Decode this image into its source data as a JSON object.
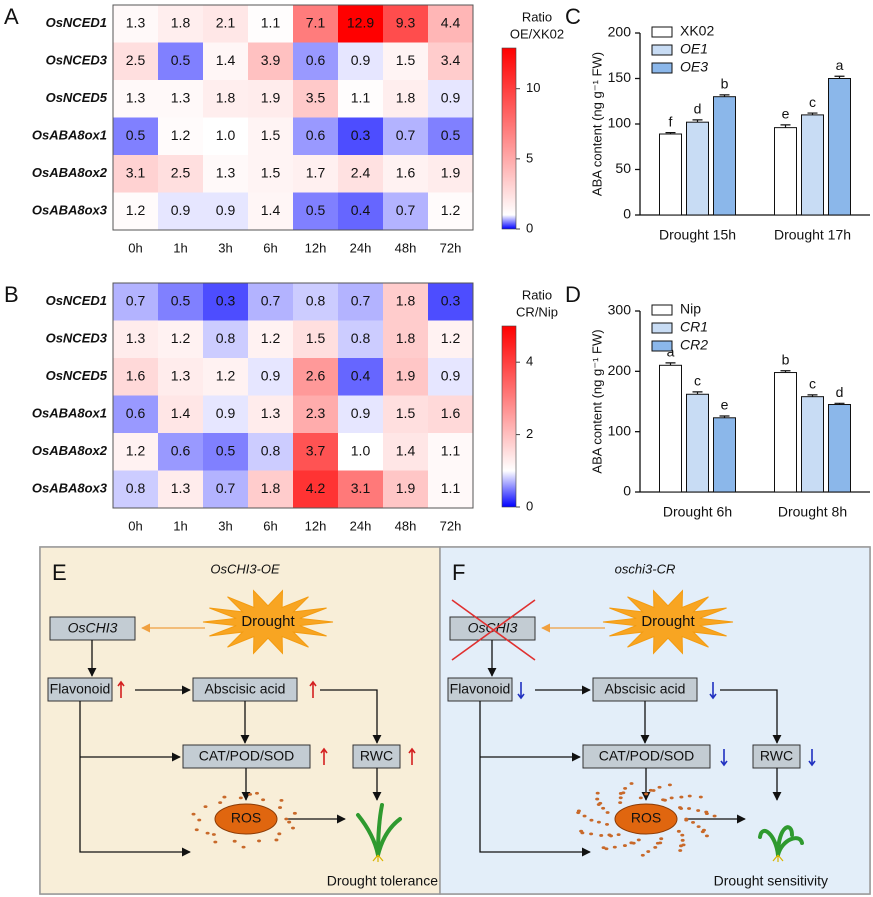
{
  "chart_data": [
    {
      "type": "heatmap",
      "panel": "A",
      "rows": [
        "OsNCED1",
        "OsNCED3",
        "OsNCED5",
        "OsABA8ox1",
        "OsABA8ox2",
        "OsABA8ox3"
      ],
      "categories": [
        "0h",
        "1h",
        "3h",
        "6h",
        "12h",
        "24h",
        "48h",
        "72h"
      ],
      "values": [
        [
          1.3,
          1.8,
          2.1,
          1.1,
          7.1,
          12.9,
          9.3,
          4.4
        ],
        [
          2.5,
          0.5,
          1.4,
          3.9,
          0.6,
          0.9,
          1.5,
          3.4
        ],
        [
          1.3,
          1.3,
          1.8,
          1.9,
          3.5,
          1.1,
          1.8,
          0.9
        ],
        [
          0.5,
          1.2,
          1.0,
          1.5,
          0.6,
          0.3,
          0.7,
          0.5
        ],
        [
          3.1,
          2.5,
          1.3,
          1.5,
          1.7,
          2.4,
          1.6,
          1.9
        ],
        [
          1.2,
          0.9,
          0.9,
          1.4,
          0.5,
          0.4,
          0.7,
          1.2
        ]
      ],
      "value_labels": [
        [
          "1.3",
          "1.8",
          "2.1",
          "1.1",
          "7.1",
          "12.9",
          "9.3",
          "4.4"
        ],
        [
          "2.5",
          "0.5",
          "1.4",
          "3.9",
          "0.6",
          "0.9",
          "1.5",
          "3.4"
        ],
        [
          "1.3",
          "1.3",
          "1.8",
          "1.9",
          "3.5",
          "1.1",
          "1.8",
          "0.9"
        ],
        [
          "0.5",
          "1.2",
          "1.0",
          "1.5",
          "0.6",
          "0.3",
          "0.7",
          "0.5"
        ],
        [
          "3.1",
          "2.5",
          "1.3",
          "1.5",
          "1.7",
          "2.4",
          "1.6",
          "1.9"
        ],
        [
          "1.2",
          "0.9",
          "0.9",
          "1.4",
          "0.5",
          "0.4",
          "0.7",
          "1.2"
        ]
      ],
      "colorbar_title": [
        "Ratio",
        "OE/XK02"
      ],
      "clim": [
        0,
        12.9
      ],
      "cticks": [
        0,
        5,
        10
      ],
      "mid": 1,
      "colors": {
        "low": "#0000ff",
        "mid": "#ffffff",
        "high": "#ff0000"
      }
    },
    {
      "type": "bar",
      "panel": "C",
      "ylabel": "ABA content (ng g⁻¹ FW)",
      "categories": [
        "Drought 15h",
        "Drought 17h"
      ],
      "series": [
        {
          "name": "XK02",
          "italic": false,
          "color": "#ffffff",
          "values": [
            89,
            96
          ],
          "errors": [
            1.5,
            3
          ],
          "letters": [
            "f",
            "e"
          ]
        },
        {
          "name": "OE1",
          "italic": true,
          "color": "#c8dcf4",
          "values": [
            102,
            110
          ],
          "errors": [
            2.5,
            2
          ],
          "letters": [
            "d",
            "c"
          ]
        },
        {
          "name": "OE3",
          "italic": true,
          "color": "#8bb7ea",
          "values": [
            130,
            150
          ],
          "errors": [
            2,
            2.5
          ],
          "letters": [
            "b",
            "a"
          ]
        }
      ],
      "ylim": [
        0,
        200
      ],
      "yticks": [
        0,
        50,
        100,
        150,
        200
      ]
    },
    {
      "type": "heatmap",
      "panel": "B",
      "rows": [
        "OsNCED1",
        "OsNCED3",
        "OsNCED5",
        "OsABA8ox1",
        "OsABA8ox2",
        "OsABA8ox3"
      ],
      "categories": [
        "0h",
        "1h",
        "3h",
        "6h",
        "12h",
        "24h",
        "48h",
        "72h"
      ],
      "values": [
        [
          0.7,
          0.5,
          0.3,
          0.7,
          0.8,
          0.7,
          1.8,
          0.3
        ],
        [
          1.3,
          1.2,
          0.8,
          1.2,
          1.5,
          0.8,
          1.8,
          1.2
        ],
        [
          1.6,
          1.3,
          1.2,
          0.9,
          2.6,
          0.4,
          1.9,
          0.9
        ],
        [
          0.6,
          1.4,
          0.9,
          1.3,
          2.3,
          0.9,
          1.5,
          1.6
        ],
        [
          1.2,
          0.6,
          0.5,
          0.8,
          3.7,
          1.0,
          1.4,
          1.1
        ],
        [
          0.8,
          1.3,
          0.7,
          1.8,
          4.2,
          3.1,
          1.9,
          1.1
        ]
      ],
      "value_labels": [
        [
          "0.7",
          "0.5",
          "0.3",
          "0.7",
          "0.8",
          "0.7",
          "1.8",
          "0.3"
        ],
        [
          "1.3",
          "1.2",
          "0.8",
          "1.2",
          "1.5",
          "0.8",
          "1.8",
          "1.2"
        ],
        [
          "1.6",
          "1.3",
          "1.2",
          "0.9",
          "2.6",
          "0.4",
          "1.9",
          "0.9"
        ],
        [
          "0.6",
          "1.4",
          "0.9",
          "1.3",
          "2.3",
          "0.9",
          "1.5",
          "1.6"
        ],
        [
          "1.2",
          "0.6",
          "0.5",
          "0.8",
          "3.7",
          "1.0",
          "1.4",
          "1.1"
        ],
        [
          "0.8",
          "1.3",
          "0.7",
          "1.8",
          "4.2",
          "3.1",
          "1.9",
          "1.1"
        ]
      ],
      "colorbar_title": [
        "Ratio",
        "CR/Nip"
      ],
      "clim": [
        0,
        5
      ],
      "cticks": [
        0,
        2,
        4
      ],
      "mid": 1,
      "colors": {
        "low": "#0000ff",
        "mid": "#ffffff",
        "high": "#ff0000"
      }
    },
    {
      "type": "bar",
      "panel": "D",
      "ylabel": "ABA content (ng g⁻¹ FW)",
      "categories": [
        "Drought 6h",
        "Drought 8h"
      ],
      "series": [
        {
          "name": "Nip",
          "italic": false,
          "color": "#ffffff",
          "values": [
            210,
            198
          ],
          "errors": [
            4,
            3
          ],
          "letters": [
            "a",
            "b"
          ]
        },
        {
          "name": "CR1",
          "italic": true,
          "color": "#c8dcf4",
          "values": [
            162,
            158
          ],
          "errors": [
            4,
            3
          ],
          "letters": [
            "c",
            "c"
          ]
        },
        {
          "name": "CR2",
          "italic": true,
          "color": "#8bb7ea",
          "values": [
            123,
            145
          ],
          "errors": [
            3,
            2
          ],
          "letters": [
            "e",
            "d"
          ]
        }
      ],
      "ylim": [
        0,
        300
      ],
      "yticks": [
        0,
        100,
        200,
        300
      ]
    }
  ],
  "diagrams": [
    {
      "panel": "E",
      "title": "OsCHI3-OE",
      "background": "#f8eed8",
      "trend": "up",
      "knocked_out": false,
      "nodes": {
        "gene": "OsCHI3",
        "stress": "Drought",
        "flavonoid": "Flavonoid",
        "aba": "Abscisic acid",
        "enzymes": "CAT/POD/SOD",
        "rwc": "RWC",
        "ros": "ROS"
      },
      "outcome": "Drought tolerance"
    },
    {
      "panel": "F",
      "title": "oschi3-CR",
      "background": "#e3eef9",
      "trend": "down",
      "knocked_out": true,
      "nodes": {
        "gene": "OsCHI3",
        "stress": "Drought",
        "flavonoid": "Flavonoid",
        "aba": "Abscisic acid",
        "enzymes": "CAT/POD/SOD",
        "rwc": "RWC",
        "ros": "ROS"
      },
      "outcome": "Drought sensitivity"
    }
  ]
}
